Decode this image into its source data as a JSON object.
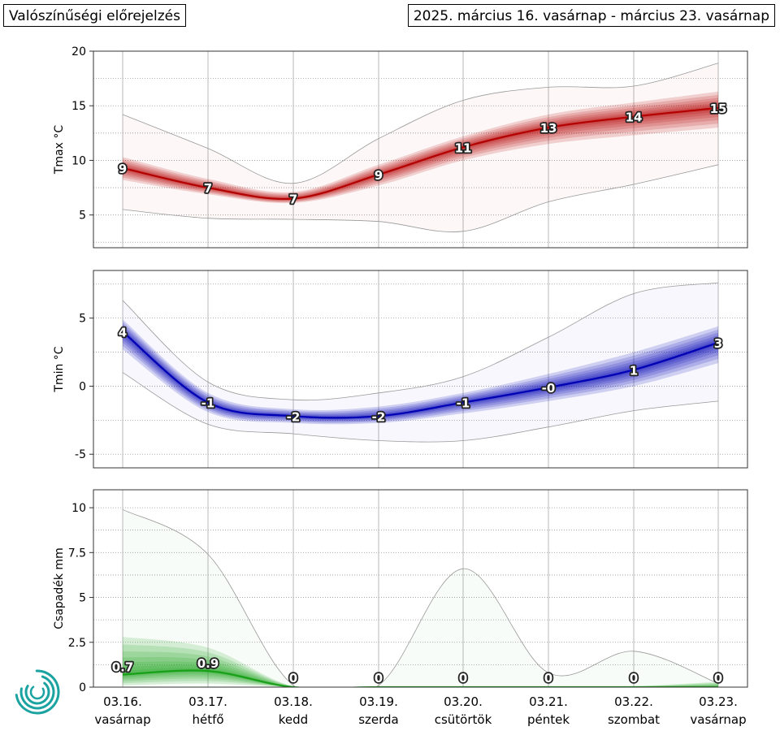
{
  "header": {
    "left_title": "Valószínűségi előrejelzés",
    "right_title": "2025. március 16. vasárnap - március 23. vasárnap"
  },
  "colors": {
    "tmax": "#b40000",
    "tmin": "#0000b4",
    "precip": "#18a018",
    "logo": "#1aa3a0"
  },
  "logo": {
    "icon": "weather-service-logo-icon"
  },
  "x_axis": {
    "dates": [
      "03.16.",
      "03.17.",
      "03.18.",
      "03.19.",
      "03.20.",
      "03.21.",
      "03.22.",
      "03.23."
    ],
    "days": [
      "vasárnap",
      "hétfő",
      "kedd",
      "szerda",
      "csütörtök",
      "péntek",
      "szombat",
      "vasárnap"
    ]
  },
  "chart_data": [
    {
      "id": "tmax",
      "type": "area",
      "ylabel": "Tmax °C",
      "ylim": [
        2,
        20
      ],
      "yticks": [
        5,
        10,
        15,
        20
      ],
      "grid": true,
      "median": [
        9.3,
        7.5,
        6.5,
        8.7,
        11.2,
        13.0,
        14.0,
        14.8
      ],
      "p10": [
        8.2,
        6.9,
        6.1,
        7.7,
        10.0,
        11.5,
        12.3,
        13.0
      ],
      "p90": [
        10.3,
        8.3,
        7.1,
        9.6,
        12.2,
        14.2,
        15.3,
        16.3
      ],
      "min": [
        5.5,
        4.7,
        4.6,
        4.4,
        3.5,
        6.2,
        7.8,
        9.6
      ],
      "max": [
        14.2,
        11.1,
        7.9,
        12.0,
        15.5,
        16.7,
        16.8,
        18.9
      ],
      "labels": [
        "9",
        "7",
        "7",
        "9",
        "11",
        "13",
        "14",
        "15"
      ]
    },
    {
      "id": "tmin",
      "type": "area",
      "ylabel": "Tmin °C",
      "ylim": [
        -6,
        8.5
      ],
      "yticks": [
        -5,
        0,
        5
      ],
      "grid": true,
      "median": [
        4.0,
        -1.2,
        -2.2,
        -2.2,
        -1.2,
        -0.1,
        1.2,
        3.2
      ],
      "p10": [
        2.7,
        -1.9,
        -2.7,
        -2.7,
        -2.0,
        -1.1,
        0.0,
        1.7
      ],
      "p90": [
        4.9,
        -0.5,
        -1.7,
        -1.5,
        -0.5,
        0.9,
        2.5,
        4.4
      ],
      "min": [
        1.0,
        -2.8,
        -3.5,
        -4.0,
        -4.0,
        -3.0,
        -1.8,
        -1.1
      ],
      "max": [
        6.3,
        0.3,
        -1.0,
        -0.5,
        0.7,
        3.6,
        6.8,
        7.6
      ],
      "labels": [
        "4",
        "-1",
        "-2",
        "-2",
        "-1",
        "-0",
        "1",
        "3"
      ]
    },
    {
      "id": "precip",
      "type": "area",
      "ylabel": "Csapadék mm",
      "ylim": [
        0,
        11
      ],
      "yticks": [
        0,
        2.5,
        5,
        7.5,
        10
      ],
      "ytick_labels": [
        "0",
        "2.5",
        "5",
        "7.5",
        "10"
      ],
      "grid": true,
      "median": [
        0.7,
        0.9,
        0,
        0,
        0,
        0,
        0,
        0
      ],
      "p10": [
        0.1,
        0.2,
        0,
        0,
        0,
        0,
        0,
        0
      ],
      "p90": [
        2.8,
        2.2,
        0.05,
        0,
        0.02,
        0,
        0.05,
        0.3
      ],
      "min": [
        0,
        0,
        0,
        0,
        0,
        0,
        0,
        0
      ],
      "max": [
        9.9,
        7.4,
        0.1,
        0.1,
        6.6,
        0.8,
        2.0,
        0.2
      ],
      "labels": [
        "0.7",
        "0.9",
        "0",
        "0",
        "0",
        "0",
        "0",
        "0"
      ]
    }
  ]
}
